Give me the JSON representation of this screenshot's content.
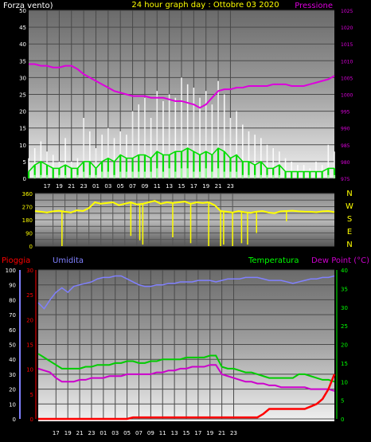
{
  "colors": {
    "background": "#000000",
    "wind_max": "#ffffff",
    "wind_avg": "#00dd00",
    "wind_min": "#99ff99",
    "pressure": "#dd00dd",
    "direction": "#ffff00",
    "humidity": "#8080ff",
    "temperature": "#00cc00",
    "dewpoint": "#cc00cc",
    "rain": "#ff0000",
    "axis_white": "#ffffff",
    "axis_green": "#00ff00",
    "compass": "#ffff00"
  },
  "x_tick_labels": [
    "17",
    "19",
    "21",
    "23",
    "01",
    "03",
    "05",
    "07",
    "09",
    "11",
    "13",
    "15",
    "17",
    "19",
    "21",
    "23"
  ],
  "chart_data": [
    {
      "type": "line",
      "title": "24 hour graph day : Ottobre 03 2020",
      "ylabel": "Forza vento)",
      "y2label": "Pressione",
      "ylim": [
        0,
        50
      ],
      "y2lim": [
        975,
        1025
      ],
      "yticks": [
        0,
        5,
        10,
        15,
        20,
        25,
        30,
        35,
        40,
        45,
        50
      ],
      "y2ticks": [
        975,
        980,
        985,
        990,
        995,
        1000,
        1005,
        1010,
        1015,
        1020,
        1025
      ],
      "x_hours": [
        14,
        15,
        16,
        17,
        18,
        19,
        20,
        21,
        22,
        23,
        24,
        25,
        26,
        27,
        28,
        29,
        30,
        31,
        32,
        33,
        34,
        35,
        36,
        37,
        38,
        39,
        40,
        41,
        42,
        43,
        44,
        45,
        46,
        47,
        48,
        49,
        50,
        51,
        52,
        53,
        54,
        55,
        56,
        57,
        58,
        59,
        60,
        61,
        62,
        63,
        64
      ],
      "series": [
        {
          "name": "gust",
          "values": [
            6,
            9,
            11,
            8,
            7,
            5,
            12,
            5,
            6,
            18,
            14,
            9,
            13,
            15,
            12,
            14,
            13,
            20,
            22,
            24,
            18,
            26,
            23,
            25,
            24,
            30,
            28,
            27,
            24,
            26,
            22,
            29,
            25,
            18,
            20,
            16,
            14,
            13,
            12,
            10,
            9,
            8,
            6,
            5,
            4,
            4,
            3,
            5,
            4,
            10,
            8
          ]
        },
        {
          "name": "avg",
          "values": [
            2,
            4,
            5,
            4,
            3,
            3,
            4,
            3,
            3,
            5,
            5,
            3,
            5,
            6,
            5,
            7,
            6,
            6,
            7,
            7,
            6,
            8,
            7,
            7,
            8,
            8,
            9,
            8,
            7,
            8,
            7,
            9,
            8,
            6,
            7,
            5,
            5,
            4,
            5,
            3,
            3,
            4,
            2,
            2,
            2,
            2,
            2,
            2,
            2,
            3,
            3
          ]
        },
        {
          "name": "min",
          "values": [
            0,
            1,
            1,
            1,
            0,
            1,
            1,
            0,
            1,
            2,
            1,
            1,
            2,
            2,
            1,
            2,
            2,
            2,
            2,
            2,
            2,
            3,
            2,
            3,
            2,
            3,
            3,
            2,
            2,
            3,
            2,
            3,
            2,
            2,
            2,
            1,
            1,
            1,
            1,
            1,
            1,
            1,
            0,
            0,
            0,
            0,
            0,
            0,
            0,
            1,
            1
          ]
        },
        {
          "name": "pressure",
          "values": [
            1009,
            1009,
            1008.5,
            1008.5,
            1008,
            1008,
            1008.5,
            1008.5,
            1007.5,
            1006,
            1005,
            1004,
            1003,
            1002,
            1001,
            1000.5,
            1000,
            999.5,
            999.5,
            999.5,
            999,
            999,
            999,
            998.5,
            998,
            998,
            997.5,
            997,
            996,
            997,
            999,
            1001,
            1001.5,
            1001.5,
            1002,
            1002,
            1002.5,
            1002.5,
            1002.5,
            1002.5,
            1003,
            1003,
            1003,
            1002.5,
            1002.5,
            1002.5,
            1003,
            1003.5,
            1004,
            1004.5,
            1005.5
          ]
        }
      ]
    },
    {
      "type": "scatter",
      "ylim": [
        0,
        360
      ],
      "yticks": [
        0,
        45,
        90,
        135,
        180,
        225,
        270,
        315,
        360
      ],
      "compass_labels": [
        "N",
        "W",
        "S",
        "E",
        "N"
      ],
      "x_hours": [
        14,
        15,
        16,
        17,
        18,
        19,
        20,
        21,
        22,
        23,
        24,
        25,
        26,
        27,
        28,
        29,
        30,
        31,
        32,
        33,
        34,
        35,
        36,
        37,
        38,
        39,
        40,
        41,
        42,
        43,
        44,
        45,
        46,
        47,
        48,
        49,
        50,
        51,
        52,
        53,
        54,
        55,
        56,
        57,
        58,
        59,
        60,
        61,
        62,
        63,
        64
      ],
      "values": [
        240,
        235,
        230,
        238,
        242,
        235,
        230,
        245,
        240,
        260,
        300,
        290,
        295,
        300,
        280,
        290,
        300,
        285,
        290,
        300,
        310,
        290,
        300,
        295,
        300,
        305,
        290,
        300,
        295,
        300,
        280,
        240,
        235,
        230,
        240,
        232,
        228,
        236,
        240,
        230,
        225,
        238,
        240,
        242,
        238,
        236,
        235,
        232,
        238,
        240,
        232
      ],
      "dips": [
        [
          18.5,
          0
        ],
        [
          30,
          70
        ],
        [
          31.5,
          40
        ],
        [
          32,
          10
        ],
        [
          37,
          60
        ],
        [
          40,
          20
        ],
        [
          43,
          0
        ],
        [
          45,
          0
        ],
        [
          45.5,
          10
        ],
        [
          47,
          0
        ],
        [
          48.5,
          20
        ],
        [
          49.5,
          10
        ],
        [
          51,
          90
        ],
        [
          56,
          170
        ]
      ]
    },
    {
      "type": "line",
      "y1_label": "Pioggia",
      "y2_label": "Umidita",
      "y3_label": "Temperatura",
      "y4_label": "Dew Point (°C)",
      "humidity_ticks": [
        0,
        10,
        20,
        30,
        40,
        50,
        60,
        70,
        80,
        90,
        100
      ],
      "rain_ticks": [
        0,
        5,
        10,
        15,
        20,
        25,
        30
      ],
      "temp_ticks": [
        0,
        5,
        10,
        15,
        20,
        25,
        30,
        35,
        40
      ],
      "humidity_lim": [
        0,
        100
      ],
      "rain_lim": [
        0,
        30
      ],
      "temp_lim": [
        0,
        40
      ],
      "x_hours": [
        14,
        15,
        16,
        17,
        18,
        19,
        20,
        21,
        22,
        23,
        24,
        25,
        26,
        27,
        28,
        29,
        30,
        31,
        32,
        33,
        34,
        35,
        36,
        37,
        38,
        39,
        40,
        41,
        42,
        43,
        44,
        45,
        46,
        47,
        48,
        49,
        50,
        51,
        52,
        53,
        54,
        55,
        56,
        57,
        58,
        59,
        60,
        61,
        62,
        63,
        64
      ],
      "series": [
        {
          "name": "Umidita",
          "values": [
            78,
            74,
            80,
            85,
            88,
            85,
            89,
            90,
            91,
            92,
            94,
            95,
            95,
            96,
            96,
            94,
            92,
            90,
            89,
            89,
            90,
            90,
            91,
            91,
            92,
            92,
            92,
            93,
            93,
            93,
            92,
            93,
            94,
            94,
            94,
            95,
            95,
            95,
            94,
            93,
            93,
            93,
            92,
            91,
            92,
            93,
            94,
            94,
            95,
            95,
            96
          ]
        },
        {
          "name": "Temperatura",
          "values": [
            17.5,
            16.5,
            15.5,
            14.5,
            13.5,
            13.5,
            13.5,
            13.5,
            14,
            14,
            14.5,
            14.5,
            14.5,
            15,
            15,
            15.5,
            15.5,
            15,
            15,
            15.5,
            15.5,
            16,
            16,
            16,
            16,
            16.5,
            16.5,
            16.5,
            16.5,
            17,
            17,
            14,
            13.5,
            13.5,
            13,
            12.5,
            12.5,
            12,
            11.5,
            11,
            11,
            11,
            11,
            11,
            12,
            12,
            11.5,
            11,
            10.5,
            10.5,
            10
          ]
        },
        {
          "name": "Dew Point (°C)",
          "values": [
            13.5,
            13,
            12.5,
            11,
            10,
            10,
            10,
            10.5,
            10.5,
            11,
            11,
            11,
            11.5,
            11.5,
            11.5,
            12,
            12,
            12,
            12,
            12,
            12.5,
            12.5,
            13,
            13,
            13.5,
            13.5,
            14,
            14,
            14,
            14.5,
            14.5,
            12,
            11.5,
            11,
            10.5,
            10,
            10,
            9.5,
            9.5,
            9,
            9,
            8.5,
            8.5,
            8.5,
            8.5,
            8.5,
            8,
            8,
            8,
            8,
            7.5
          ]
        },
        {
          "name": "Pioggia",
          "values": [
            0,
            0,
            0,
            0,
            0,
            0,
            0,
            0,
            0,
            0,
            0,
            0,
            0,
            0,
            0,
            0,
            0.3,
            0.3,
            0.3,
            0.3,
            0.3,
            0.3,
            0.3,
            0.3,
            0.3,
            0.3,
            0.3,
            0.3,
            0.3,
            0.3,
            0.3,
            0.3,
            0.3,
            0.3,
            0.3,
            0.3,
            0.3,
            0.3,
            1,
            2,
            2,
            2,
            2,
            2,
            2,
            2,
            2.5,
            3,
            4,
            6,
            9
          ]
        }
      ]
    }
  ]
}
